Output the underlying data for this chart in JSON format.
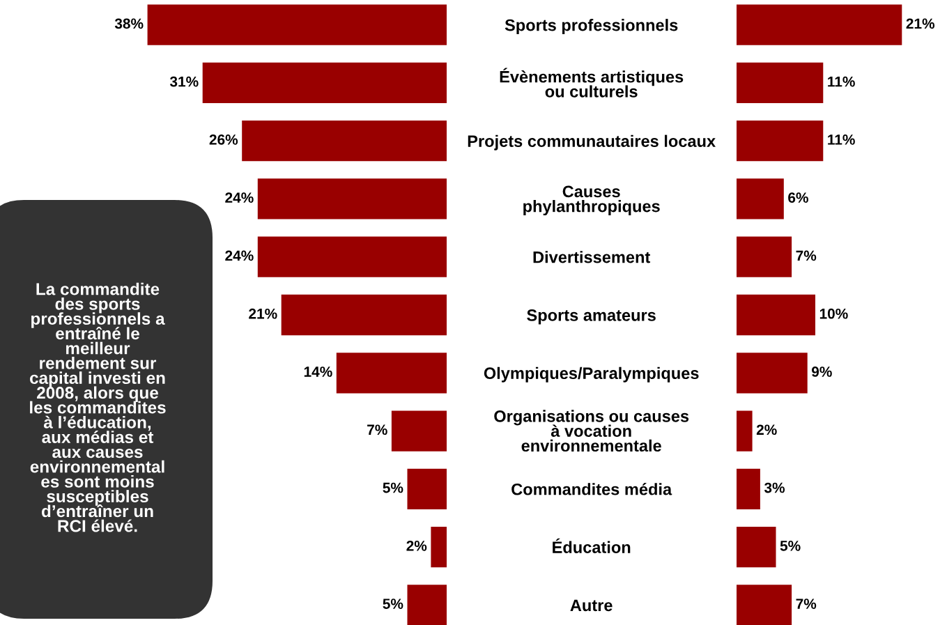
{
  "chart_data": [
    {
      "type": "bar",
      "orientation": "horizontal",
      "categories": [
        null,
        null,
        null,
        null,
        null,
        null,
        null,
        null,
        null,
        null,
        null
      ],
      "values": [
        38,
        31,
        26,
        24,
        24,
        21,
        14,
        7,
        5,
        2,
        5
      ],
      "color": "#990000",
      "value_labels": [
        "38%",
        "31%",
        "26%",
        "24%",
        "24%",
        "21%",
        "14%",
        "7%",
        "5%",
        "2%",
        "5%"
      ],
      "tick_labels": false,
      "grid": false,
      "legend": false,
      "annotations": [
        "La commandite\ndes sports\nprofessionnels a\nentraîné le\nmeilleur\nrendement sur\ncapital investi en\n2008, alors que\nles commandites\nà l’éducation,\naux médias et\naux causes\nenvironnemental\nes sont moins\nsusceptibles\nd’entraîner un\nRCI élevé."
      ]
    },
    {
      "type": "bar",
      "orientation": "horizontal",
      "categories": [
        "Sports professionnels",
        "Évènements artistiques\nou culturels",
        "Projets communautaires locaux",
        "Causes\nphylanthropiques",
        "Divertissement",
        "Sports amateurs",
        "Olympiques/Paralympiques",
        "Organisations ou causes\nà vocation\nenvironnementale",
        "Commandites média",
        "Éducation",
        "Autre"
      ],
      "values": [
        21,
        11,
        11,
        6,
        7,
        10,
        9,
        2,
        3,
        5,
        7
      ],
      "color": "#990000",
      "value_labels": [
        "21%",
        "11%",
        "11%",
        "6%",
        "7%",
        "10%",
        "9%",
        "2%",
        "3%",
        "5%",
        "7%"
      ],
      "tick_labels": "y",
      "grid": false,
      "legend": false
    }
  ]
}
